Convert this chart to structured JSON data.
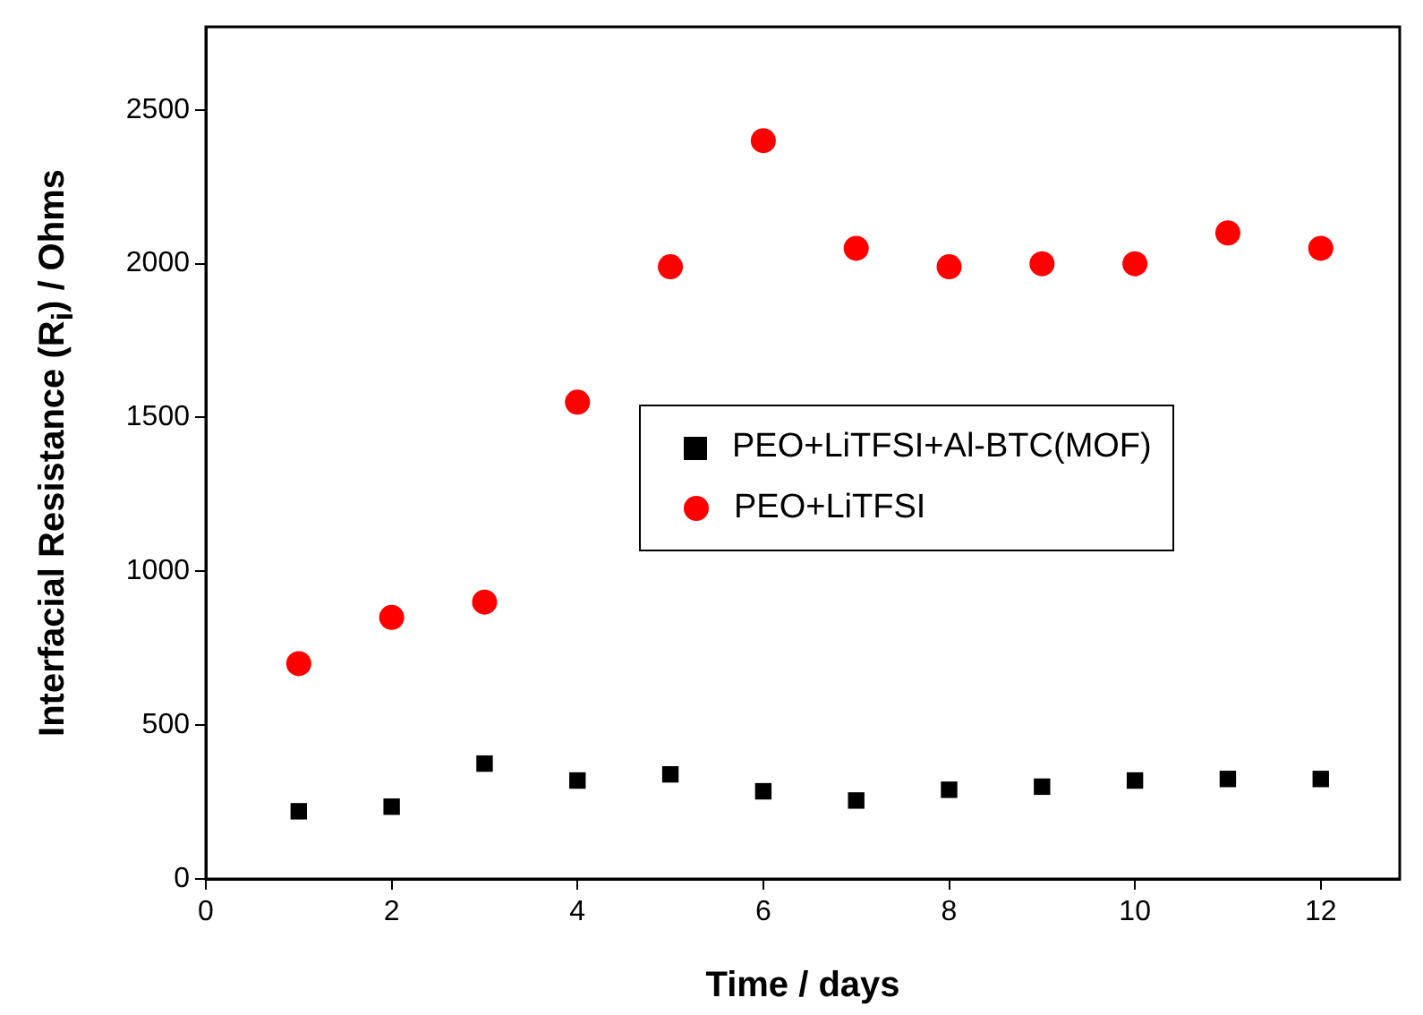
{
  "chart_data": {
    "type": "scatter",
    "xlabel": "Time / days",
    "ylabel": "Interfacial Resistance (R$_{i}$) / Ohms",
    "x": [
      1,
      2,
      3,
      4,
      5,
      6,
      7,
      8,
      9,
      10,
      11,
      12
    ],
    "series": [
      {
        "name": "PEO+LiTFSI+Al-BTC(MOF)",
        "color": "#000000",
        "marker": "square",
        "values": [
          220,
          235,
          375,
          320,
          340,
          285,
          255,
          290,
          300,
          320,
          325,
          325
        ]
      },
      {
        "name": "PEO+LiTFSI",
        "color": "#ff0000",
        "marker": "circle",
        "values": [
          700,
          850,
          900,
          1550,
          1990,
          2400,
          2050,
          1990,
          2000,
          2000,
          2100,
          2050
        ]
      }
    ],
    "xlim": [
      0,
      12.85
    ],
    "xticks": [
      0,
      2,
      4,
      6,
      8,
      10,
      12
    ],
    "ylim": [
      0,
      2770
    ],
    "yticks": [
      0,
      500,
      1000,
      1500,
      2000,
      2500
    ],
    "grid": false,
    "legend": "right"
  }
}
